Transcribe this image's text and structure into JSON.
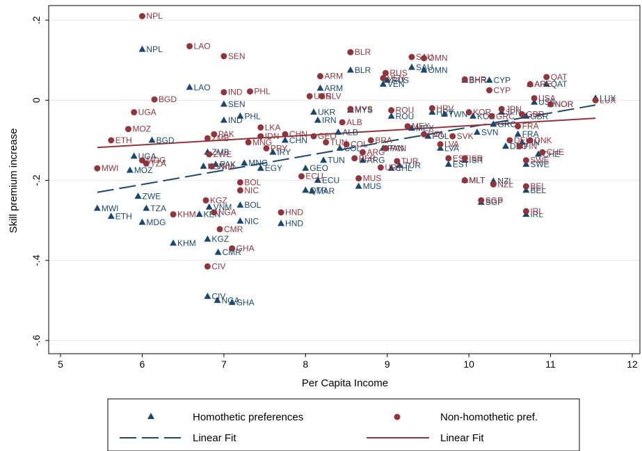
{
  "chart_data": {
    "type": "scatter",
    "xlabel": "Per Capita Income",
    "ylabel": "Skill premium increase",
    "xlim": [
      5,
      12
    ],
    "ylim": [
      -0.6,
      0.2
    ],
    "xticks": [
      "5",
      "6",
      "7",
      "8",
      "9",
      "10",
      "11",
      "12"
    ],
    "yticks": [
      "-.6",
      "-.4",
      "-.2",
      "0",
      ".2"
    ],
    "ytick_values": [
      -0.6,
      -0.4,
      -0.2,
      0,
      0.2
    ],
    "xtick_values": [
      5,
      6,
      7,
      8,
      9,
      10,
      11,
      12
    ],
    "grid": true,
    "legend_position": "bottom",
    "colors": {
      "homothetic": "#1a476f",
      "nonhomothetic": "#90353b"
    },
    "legend": {
      "homothetic_points": "Homothetic preferences",
      "nonhomothetic_points": "Non-homothetic pref.",
      "homothetic_fit": "Linear Fit",
      "nonhomothetic_fit": "Linear Fit"
    },
    "fits": {
      "homothetic": {
        "x": [
          5.45,
          11.55
        ],
        "y": [
          -0.23,
          -0.012
        ]
      },
      "nonhomothetic": {
        "x": [
          5.45,
          11.55
        ],
        "y": [
          -0.118,
          -0.045
        ]
      }
    },
    "homothetic": [
      {
        "label": "NPL",
        "x": 6.0,
        "y": 0.127
      },
      {
        "label": "LAO",
        "x": 6.58,
        "y": 0.032
      },
      {
        "label": "SEN",
        "x": 7.0,
        "y": -0.01
      },
      {
        "label": "PHL",
        "x": 7.2,
        "y": -0.04
      },
      {
        "label": "IND",
        "x": 7.0,
        "y": -0.05
      },
      {
        "label": "BGD",
        "x": 6.12,
        "y": -0.1
      },
      {
        "label": "UGA",
        "x": 5.9,
        "y": -0.14
      },
      {
        "label": "MOZ",
        "x": 5.85,
        "y": -0.175
      },
      {
        "label": "ZMB",
        "x": 6.8,
        "y": -0.13
      },
      {
        "label": "PAK",
        "x": 6.9,
        "y": -0.16
      },
      {
        "label": "MNG",
        "x": 7.25,
        "y": -0.157
      },
      {
        "label": "CHN",
        "x": 7.75,
        "y": -0.1
      },
      {
        "label": "KEN",
        "x": 6.75,
        "y": -0.165
      },
      {
        "label": "IRY",
        "x": 7.6,
        "y": -0.13
      },
      {
        "label": "EGY",
        "x": 7.45,
        "y": -0.17
      },
      {
        "label": "ZWE",
        "x": 5.95,
        "y": -0.24
      },
      {
        "label": "TZA",
        "x": 6.05,
        "y": -0.27
      },
      {
        "label": "MWI",
        "x": 5.45,
        "y": -0.27
      },
      {
        "label": "ETH",
        "x": 5.62,
        "y": -0.29
      },
      {
        "label": "MDG",
        "x": 6.0,
        "y": -0.305
      },
      {
        "label": "KHM",
        "x": 6.38,
        "y": -0.357
      },
      {
        "label": "VNM",
        "x": 6.82,
        "y": -0.267
      },
      {
        "label": "KEN",
        "x": 6.7,
        "y": -0.285
      },
      {
        "label": "BOL",
        "x": 7.2,
        "y": -0.262
      },
      {
        "label": "NIC",
        "x": 7.2,
        "y": -0.302
      },
      {
        "label": "HND",
        "x": 7.7,
        "y": -0.308
      },
      {
        "label": "KGZ",
        "x": 6.8,
        "y": -0.347
      },
      {
        "label": "CMR",
        "x": 6.93,
        "y": -0.38
      },
      {
        "label": "CIV",
        "x": 6.8,
        "y": -0.49
      },
      {
        "label": "NGA",
        "x": 6.92,
        "y": -0.5
      },
      {
        "label": "GHA",
        "x": 7.1,
        "y": -0.505
      },
      {
        "label": "ARM",
        "x": 8.18,
        "y": 0.03
      },
      {
        "label": "BLR",
        "x": 8.55,
        "y": 0.075
      },
      {
        "label": "UKR",
        "x": 8.1,
        "y": -0.03
      },
      {
        "label": "IRN",
        "x": 8.15,
        "y": -0.05
      },
      {
        "label": "MYS",
        "x": 8.55,
        "y": -0.025
      },
      {
        "label": "TUN",
        "x": 8.22,
        "y": -0.15
      },
      {
        "label": "COL",
        "x": 8.42,
        "y": -0.12
      },
      {
        "label": "ALB",
        "x": 8.4,
        "y": -0.08
      },
      {
        "label": "GEO",
        "x": 8.0,
        "y": -0.17
      },
      {
        "label": "ECU",
        "x": 8.15,
        "y": -0.2
      },
      {
        "label": "QTR",
        "x": 8.0,
        "y": -0.225
      },
      {
        "label": "MAR",
        "x": 8.08,
        "y": -0.227
      },
      {
        "label": "MUS",
        "x": 8.65,
        "y": -0.215
      },
      {
        "label": "CHL",
        "x": 9.05,
        "y": -0.17
      },
      {
        "label": "TUR",
        "x": 9.15,
        "y": -0.163
      },
      {
        "label": "PAN",
        "x": 8.95,
        "y": -0.12
      },
      {
        "label": "ARG",
        "x": 8.7,
        "y": -0.15
      },
      {
        "label": "ROU",
        "x": 9.05,
        "y": -0.04
      },
      {
        "label": "VEN",
        "x": 8.95,
        "y": 0.04
      },
      {
        "label": "RUS",
        "x": 9.0,
        "y": 0.05
      },
      {
        "label": "SAU",
        "x": 9.3,
        "y": 0.082
      },
      {
        "label": "OMN",
        "x": 9.45,
        "y": 0.075
      },
      {
        "label": "MEX",
        "x": 9.3,
        "y": -0.07
      },
      {
        "label": "POL",
        "x": 9.5,
        "y": -0.09
      },
      {
        "label": "LVA",
        "x": 9.65,
        "y": -0.12
      },
      {
        "label": "HRV",
        "x": 9.55,
        "y": -0.03
      },
      {
        "label": "TWN",
        "x": 9.7,
        "y": -0.035
      },
      {
        "label": "KOR",
        "x": 10.05,
        "y": -0.04
      },
      {
        "label": "BHR",
        "x": 9.95,
        "y": 0.05
      },
      {
        "label": "CYP",
        "x": 10.25,
        "y": 0.05
      },
      {
        "label": "SVN",
        "x": 10.1,
        "y": -0.08
      },
      {
        "label": "ISR",
        "x": 9.95,
        "y": -0.15
      },
      {
        "label": "EST",
        "x": 9.75,
        "y": -0.16
      },
      {
        "label": "MLT",
        "x": 9.95,
        "y": -0.2
      },
      {
        "label": "NZL",
        "x": 10.3,
        "y": -0.202
      },
      {
        "label": "SGP",
        "x": 10.15,
        "y": -0.255
      },
      {
        "label": "JPN",
        "x": 10.4,
        "y": -0.03
      },
      {
        "label": "GRC",
        "x": 10.3,
        "y": -0.06
      },
      {
        "label": "GBR",
        "x": 10.7,
        "y": -0.04
      },
      {
        "label": "FRA",
        "x": 10.6,
        "y": -0.085
      },
      {
        "label": "DEU",
        "x": 10.45,
        "y": -0.115
      },
      {
        "label": "FIN",
        "x": 10.65,
        "y": -0.105
      },
      {
        "label": "SWE",
        "x": 10.7,
        "y": -0.16
      },
      {
        "label": "CHE",
        "x": 10.85,
        "y": -0.135
      },
      {
        "label": "BEL",
        "x": 10.7,
        "y": -0.225
      },
      {
        "label": "IRL",
        "x": 10.7,
        "y": -0.285
      },
      {
        "label": "USA",
        "x": 10.8,
        "y": -0.005
      },
      {
        "label": "NOR",
        "x": 11.0,
        "y": -0.01
      },
      {
        "label": "ARE",
        "x": 10.75,
        "y": 0.04
      },
      {
        "label": "QAT",
        "x": 10.95,
        "y": 0.04
      },
      {
        "label": "LUX",
        "x": 11.55,
        "y": 0.005
      }
    ],
    "nonhomothetic": [
      {
        "label": "NPL",
        "x": 6.0,
        "y": 0.21
      },
      {
        "label": "LAO",
        "x": 6.58,
        "y": 0.135
      },
      {
        "label": "SEN",
        "x": 7.0,
        "y": 0.11
      },
      {
        "label": "PHL",
        "x": 7.32,
        "y": 0.022
      },
      {
        "label": "IND",
        "x": 7.0,
        "y": 0.02
      },
      {
        "label": "BGD",
        "x": 6.15,
        "y": 0.002
      },
      {
        "label": "UGA",
        "x": 5.9,
        "y": -0.03
      },
      {
        "label": "MOZ",
        "x": 5.83,
        "y": -0.072
      },
      {
        "label": "ETH",
        "x": 5.62,
        "y": -0.1
      },
      {
        "label": "MWI",
        "x": 5.45,
        "y": -0.17
      },
      {
        "label": "MDG",
        "x": 6.0,
        "y": -0.15
      },
      {
        "label": "TZA",
        "x": 6.05,
        "y": -0.158
      },
      {
        "label": "KHM",
        "x": 6.38,
        "y": -0.285
      },
      {
        "label": "ZMB",
        "x": 6.8,
        "y": -0.095
      },
      {
        "label": "PAK",
        "x": 6.88,
        "y": -0.085
      },
      {
        "label": "ZWE",
        "x": 6.82,
        "y": -0.135
      },
      {
        "label": "LKA",
        "x": 7.45,
        "y": -0.068
      },
      {
        "label": "MNG",
        "x": 7.3,
        "y": -0.105
      },
      {
        "label": "IDN",
        "x": 7.45,
        "y": -0.09
      },
      {
        "label": "CHN",
        "x": 7.75,
        "y": -0.085
      },
      {
        "label": "VNM",
        "x": 6.85,
        "y": -0.165
      },
      {
        "label": "PRY",
        "x": 7.52,
        "y": -0.12
      },
      {
        "label": "KGZ",
        "x": 6.78,
        "y": -0.25
      },
      {
        "label": "NGA",
        "x": 6.88,
        "y": -0.28
      },
      {
        "label": "BOL",
        "x": 7.2,
        "y": -0.205
      },
      {
        "label": "NIC",
        "x": 7.2,
        "y": -0.225
      },
      {
        "label": "CMR",
        "x": 6.95,
        "y": -0.322
      },
      {
        "label": "GHA",
        "x": 7.1,
        "y": -0.37
      },
      {
        "label": "CIV",
        "x": 6.8,
        "y": -0.415
      },
      {
        "label": "HND",
        "x": 7.7,
        "y": -0.28
      },
      {
        "label": "ARM",
        "x": 8.18,
        "y": 0.06
      },
      {
        "label": "BLR",
        "x": 8.55,
        "y": 0.12
      },
      {
        "label": "SLV",
        "x": 8.2,
        "y": 0.01
      },
      {
        "label": "UKR",
        "x": 8.05,
        "y": 0.01
      },
      {
        "label": "MYS",
        "x": 8.55,
        "y": -0.022
      },
      {
        "label": "GEO",
        "x": 8.1,
        "y": -0.09
      },
      {
        "label": "ALB",
        "x": 8.45,
        "y": -0.055
      },
      {
        "label": "TUN",
        "x": 8.25,
        "y": -0.105
      },
      {
        "label": "COL",
        "x": 8.5,
        "y": -0.11
      },
      {
        "label": "PER",
        "x": 8.6,
        "y": -0.145
      },
      {
        "label": "ECU",
        "x": 7.95,
        "y": -0.19
      },
      {
        "label": "BRA",
        "x": 8.8,
        "y": -0.1
      },
      {
        "label": "ARG",
        "x": 8.7,
        "y": -0.13
      },
      {
        "label": "MUS",
        "x": 8.65,
        "y": -0.195
      },
      {
        "label": "URY",
        "x": 8.92,
        "y": -0.168
      },
      {
        "label": "PAN",
        "x": 8.98,
        "y": -0.12
      },
      {
        "label": "TUR",
        "x": 9.12,
        "y": -0.152
      },
      {
        "label": "RUS",
        "x": 8.98,
        "y": 0.068
      },
      {
        "label": "VEN",
        "x": 8.95,
        "y": 0.055
      },
      {
        "label": "SAU",
        "x": 9.3,
        "y": 0.108
      },
      {
        "label": "OMN",
        "x": 9.45,
        "y": 0.105
      },
      {
        "label": "ROU",
        "x": 9.05,
        "y": -0.025
      },
      {
        "label": "MEX",
        "x": 9.25,
        "y": -0.065
      },
      {
        "label": "POL",
        "x": 9.45,
        "y": -0.085
      },
      {
        "label": "HRV",
        "x": 9.55,
        "y": -0.02
      },
      {
        "label": "KOR",
        "x": 10.0,
        "y": -0.03
      },
      {
        "label": "BHR",
        "x": 9.95,
        "y": 0.052
      },
      {
        "label": "CYP",
        "x": 10.25,
        "y": 0.025
      },
      {
        "label": "SVK",
        "x": 9.8,
        "y": -0.09
      },
      {
        "label": "LVA",
        "x": 9.65,
        "y": -0.11
      },
      {
        "label": "ISR",
        "x": 9.95,
        "y": -0.145
      },
      {
        "label": "EST",
        "x": 9.75,
        "y": -0.145
      },
      {
        "label": "MLT",
        "x": 9.95,
        "y": -0.2
      },
      {
        "label": "NZL",
        "x": 10.3,
        "y": -0.21
      },
      {
        "label": "SGP",
        "x": 10.15,
        "y": -0.25
      },
      {
        "label": "JPN",
        "x": 10.4,
        "y": -0.022
      },
      {
        "label": "GRC",
        "x": 10.28,
        "y": -0.04
      },
      {
        "label": "GBR",
        "x": 10.65,
        "y": -0.035
      },
      {
        "label": "FRA",
        "x": 10.6,
        "y": -0.065
      },
      {
        "label": "DEU",
        "x": 10.5,
        "y": -0.1
      },
      {
        "label": "DNK",
        "x": 10.75,
        "y": -0.1
      },
      {
        "label": "FIN",
        "x": 10.62,
        "y": -0.115
      },
      {
        "label": "CHE",
        "x": 10.9,
        "y": -0.13
      },
      {
        "label": "SWE",
        "x": 10.7,
        "y": -0.15
      },
      {
        "label": "BEL",
        "x": 10.7,
        "y": -0.215
      },
      {
        "label": "IRL",
        "x": 10.7,
        "y": -0.277
      },
      {
        "label": "USA",
        "x": 10.8,
        "y": 0.005
      },
      {
        "label": "NOR",
        "x": 11.0,
        "y": -0.01
      },
      {
        "label": "ARE",
        "x": 10.75,
        "y": 0.04
      },
      {
        "label": "QAT",
        "x": 10.95,
        "y": 0.058
      },
      {
        "label": "LUX",
        "x": 11.55,
        "y": 0.0
      }
    ]
  }
}
